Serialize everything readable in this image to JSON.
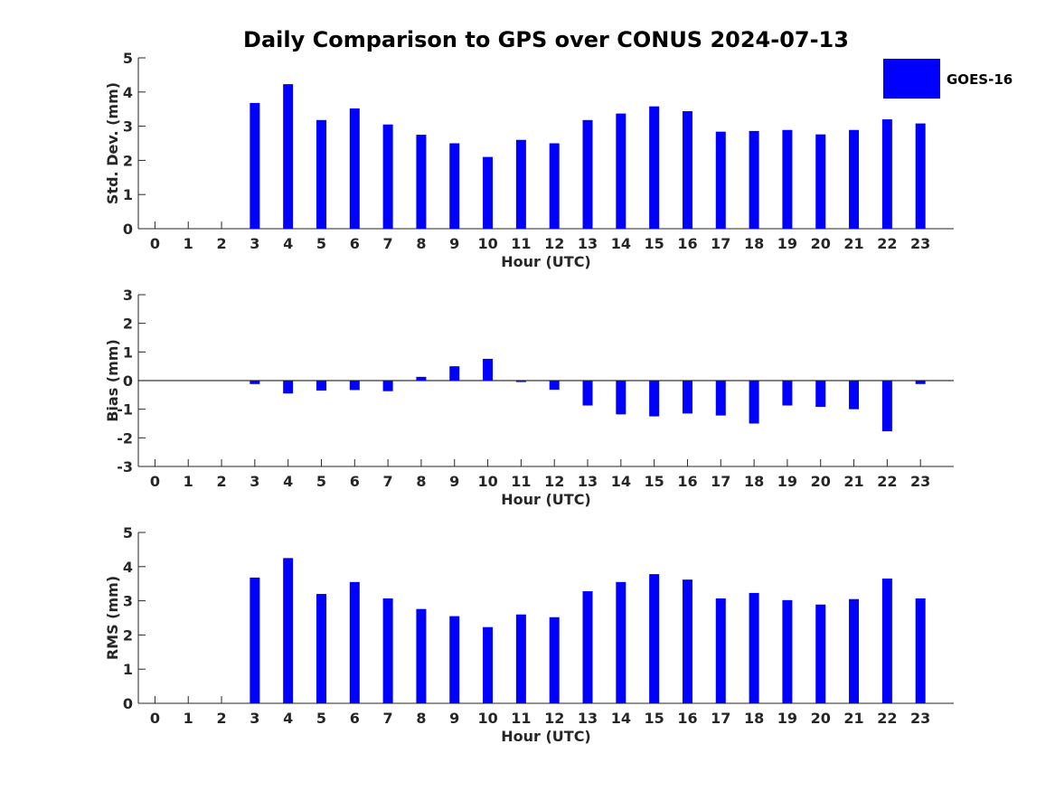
{
  "chart_data": [
    {
      "type": "bar",
      "title": "Daily Comparison to GPS over CONUS 2024-07-13",
      "xlabel": "Hour (UTC)",
      "ylabel": "Std. Dev. (mm)",
      "ylim": [
        0,
        5
      ],
      "yticks": [
        0,
        1,
        2,
        3,
        4,
        5
      ],
      "categories": [
        "0",
        "1",
        "2",
        "3",
        "4",
        "5",
        "6",
        "7",
        "8",
        "9",
        "10",
        "11",
        "12",
        "13",
        "14",
        "15",
        "16",
        "17",
        "18",
        "19",
        "20",
        "21",
        "22",
        "23"
      ],
      "series": [
        {
          "name": "GOES-16",
          "color": "#0000ff",
          "values": [
            null,
            null,
            null,
            3.68,
            4.23,
            3.18,
            3.52,
            3.05,
            2.75,
            2.5,
            2.1,
            2.6,
            2.5,
            3.18,
            3.37,
            3.58,
            3.44,
            2.84,
            2.86,
            2.89,
            2.76,
            2.89,
            3.2,
            3.08
          ]
        }
      ],
      "legend": {
        "entries": [
          "GOES-16"
        ],
        "position": "top-right"
      }
    },
    {
      "type": "bar",
      "xlabel": "Hour (UTC)",
      "ylabel": "Bias (mm)",
      "ylim": [
        -3,
        3
      ],
      "yticks": [
        -3,
        -2,
        -1,
        0,
        1,
        2,
        3
      ],
      "categories": [
        "0",
        "1",
        "2",
        "3",
        "4",
        "5",
        "6",
        "7",
        "8",
        "9",
        "10",
        "11",
        "12",
        "13",
        "14",
        "15",
        "16",
        "17",
        "18",
        "19",
        "20",
        "21",
        "22",
        "23"
      ],
      "series": [
        {
          "name": "GOES-16",
          "color": "#0000ff",
          "values": [
            null,
            null,
            null,
            -0.12,
            -0.45,
            -0.35,
            -0.33,
            -0.37,
            0.13,
            0.5,
            0.76,
            -0.05,
            -0.32,
            -0.87,
            -1.18,
            -1.25,
            -1.15,
            -1.22,
            -1.5,
            -0.87,
            -0.92,
            -1.0,
            -1.77,
            -0.12
          ]
        }
      ]
    },
    {
      "type": "bar",
      "xlabel": "Hour (UTC)",
      "ylabel": "RMS (mm)",
      "ylim": [
        0,
        5
      ],
      "yticks": [
        0,
        1,
        2,
        3,
        4,
        5
      ],
      "categories": [
        "0",
        "1",
        "2",
        "3",
        "4",
        "5",
        "6",
        "7",
        "8",
        "9",
        "10",
        "11",
        "12",
        "13",
        "14",
        "15",
        "16",
        "17",
        "18",
        "19",
        "20",
        "21",
        "22",
        "23"
      ],
      "series": [
        {
          "name": "GOES-16",
          "color": "#0000ff",
          "values": [
            null,
            null,
            null,
            3.68,
            4.25,
            3.2,
            3.55,
            3.07,
            2.76,
            2.55,
            2.23,
            2.6,
            2.52,
            3.28,
            3.55,
            3.78,
            3.62,
            3.07,
            3.23,
            3.02,
            2.89,
            3.05,
            3.65,
            3.07
          ]
        }
      ]
    }
  ]
}
